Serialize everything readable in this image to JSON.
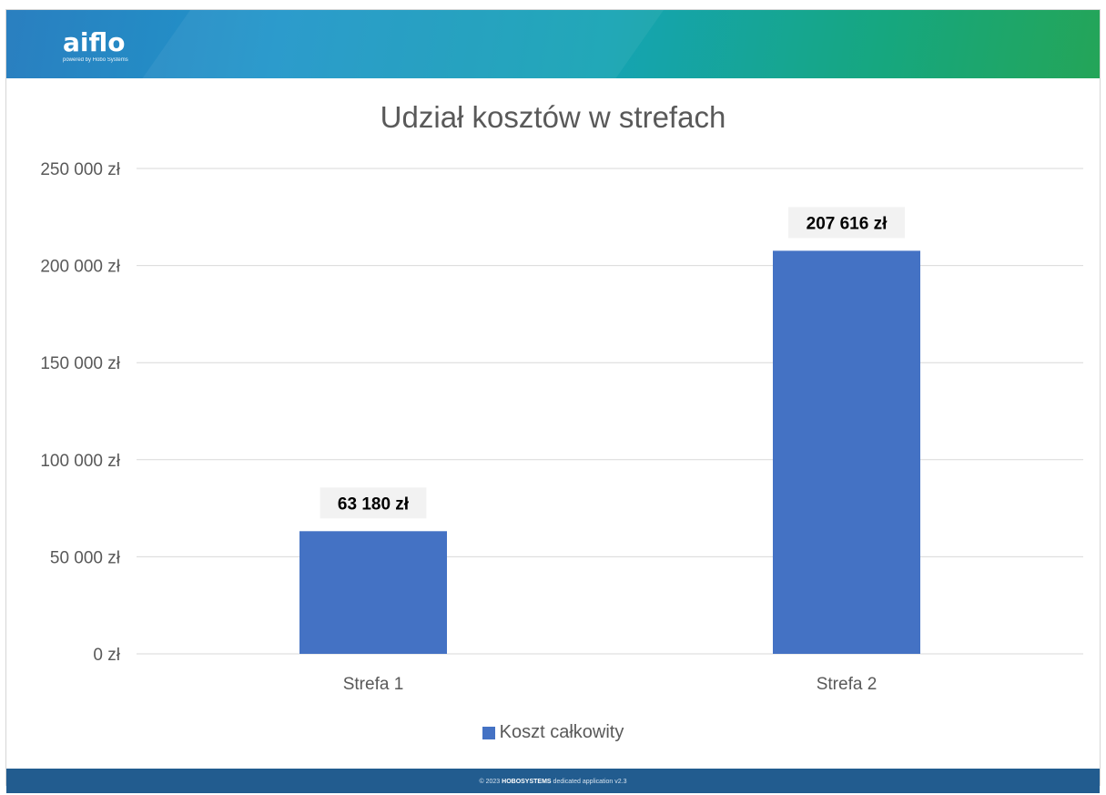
{
  "app": {
    "logo_text": "aiflo",
    "logo_tagline": "powered by Hobo Systems"
  },
  "footer": {
    "prefix": "© 2023",
    "brand": "HOBOSYSTEMS",
    "suffix": "dedicated application v2.3"
  },
  "colors": {
    "bar": "#4472c4",
    "grid": "#d9d9d9",
    "text": "#595959",
    "header_start": "#2a7fc0",
    "header_end": "#24a558",
    "footer": "#225c8f"
  },
  "chart_data": {
    "type": "bar",
    "title": "Udział kosztów w strefach",
    "categories": [
      "Strefa 1",
      "Strefa 2"
    ],
    "series": [
      {
        "name": "Koszt całkowity",
        "values": [
          63180,
          207616
        ]
      }
    ],
    "data_labels": [
      "63 180 zł",
      "207 616 zł"
    ],
    "y_ticks": [
      0,
      50000,
      100000,
      150000,
      200000,
      250000
    ],
    "y_tick_labels": [
      "0 zł",
      "50 000 zł",
      "100 000 zł",
      "150 000 zł",
      "200 000 zł",
      "250 000 zł"
    ],
    "ylim": [
      0,
      250000
    ],
    "grid": true,
    "legend_position": "bottom"
  }
}
